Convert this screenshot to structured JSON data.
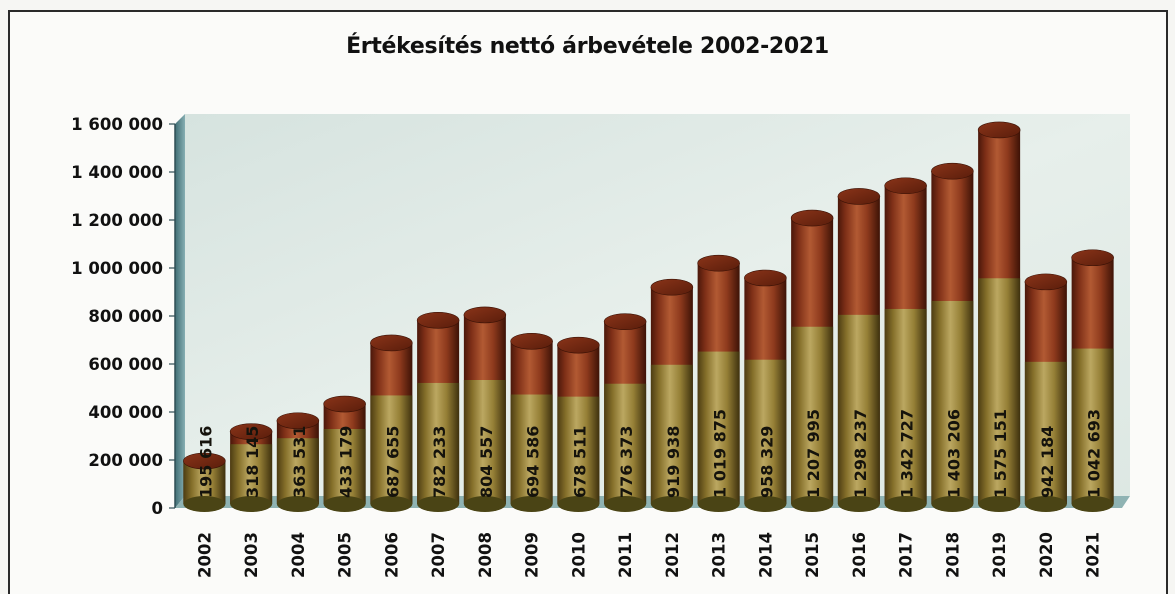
{
  "chart_data": {
    "type": "bar",
    "title": "Értékesítés nettó árbevétele 2002-2021",
    "xlabel": "",
    "ylabel": "",
    "ylim": [
      0,
      1600000
    ],
    "yticks": [
      "0",
      "200 000",
      "400 000",
      "600 000",
      "800 000",
      "1 000 000",
      "1 200 000",
      "1 400 000",
      "1 600 000"
    ],
    "ytick_values": [
      0,
      200000,
      400000,
      600000,
      800000,
      1000000,
      1200000,
      1400000,
      1600000
    ],
    "categories": [
      "2002",
      "2003",
      "2004",
      "2005",
      "2006",
      "2007",
      "2008",
      "2009",
      "2010",
      "2011",
      "2012",
      "2013",
      "2014",
      "2015",
      "2016",
      "2017",
      "2018",
      "2019",
      "2020",
      "2021"
    ],
    "values": [
      195616,
      318145,
      363531,
      433179,
      687655,
      782233,
      804557,
      694586,
      678511,
      776373,
      919938,
      1019875,
      958329,
      1207995,
      1298237,
      1342727,
      1403206,
      1575151,
      942184,
      1042693
    ],
    "value_labels": [
      "195 616",
      "318 145",
      "363 531",
      "433 179",
      "687 655",
      "782 233",
      "804 557",
      "694 586",
      "678 511",
      "776 373",
      "919 938",
      "1 019 875",
      "958 329",
      "1 207 995",
      "1 298 237",
      "1 342 727",
      "1 403 206",
      "1 575 151",
      "942 184",
      "1 042 693"
    ],
    "grid": false,
    "legend": "none",
    "bar_shape": "3d-cylinder",
    "colors": {
      "bar_top": "#9a3d1f",
      "bar_bottom": "#a8a049",
      "wall": "#dfe9e5",
      "axis_wall": "#5f8c92"
    }
  }
}
